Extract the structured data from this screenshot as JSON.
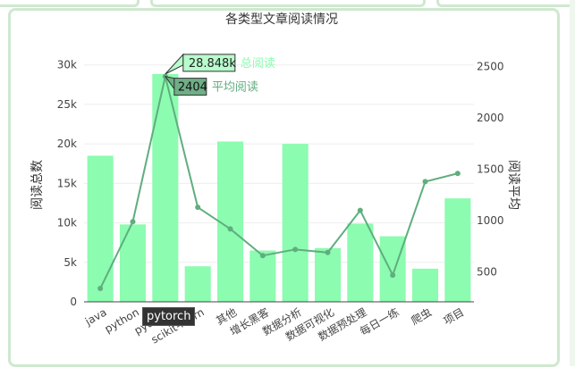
{
  "chart_data": {
    "type": "bar",
    "title": "各类型文章阅读情况",
    "categories": [
      "java",
      "python",
      "pytorch",
      "scikit-learn",
      "其他",
      "增长黑客",
      "数据分析",
      "数据可视化",
      "数据预处理",
      "每日一练",
      "爬虫",
      "项目"
    ],
    "series": [
      {
        "name": "总阅读",
        "type": "bar",
        "axis": "left",
        "values": [
          18500,
          9800,
          28848,
          4500,
          20300,
          6500,
          20000,
          6800,
          9900,
          8300,
          4200,
          13100
        ]
      },
      {
        "name": "平均阅读",
        "type": "line",
        "axis": "right",
        "values": [
          340,
          990,
          2404,
          1130,
          920,
          660,
          720,
          690,
          1100,
          470,
          1380,
          1460
        ]
      }
    ],
    "ylabel_left": "阅读总数",
    "ylabel_right": "阅读平均",
    "yleft_range": [
      0,
      32000
    ],
    "yleft_ticks": [
      "0",
      "5k",
      "10k",
      "15k",
      "20k",
      "25k",
      "30k"
    ],
    "yright_range": [
      210,
      2670
    ],
    "yright_ticks": [
      "500",
      "1000",
      "1500",
      "2000",
      "2500"
    ],
    "hover": {
      "category": "pytorch",
      "bar_label": "28.848k",
      "bar_series": "总阅读",
      "line_label": "2404",
      "line_series": "平均阅读"
    },
    "bar_color": "#8cfcb0",
    "line_color": "#5fae7e",
    "grid": true,
    "legend": "none"
  }
}
